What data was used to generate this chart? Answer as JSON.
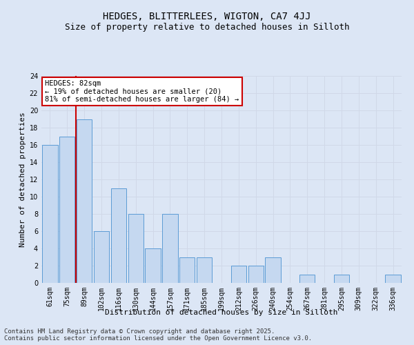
{
  "title": "HEDGES, BLITTERLEES, WIGTON, CA7 4JJ",
  "subtitle": "Size of property relative to detached houses in Silloth",
  "xlabel": "Distribution of detached houses by size in Silloth",
  "ylabel": "Number of detached properties",
  "categories": [
    "61sqm",
    "75sqm",
    "89sqm",
    "102sqm",
    "116sqm",
    "130sqm",
    "144sqm",
    "157sqm",
    "171sqm",
    "185sqm",
    "199sqm",
    "212sqm",
    "226sqm",
    "240sqm",
    "254sqm",
    "267sqm",
    "281sqm",
    "295sqm",
    "309sqm",
    "322sqm",
    "336sqm"
  ],
  "values": [
    16,
    17,
    19,
    6,
    11,
    8,
    4,
    8,
    3,
    3,
    0,
    2,
    2,
    3,
    0,
    1,
    0,
    1,
    0,
    0,
    1
  ],
  "bar_color": "#c5d8f0",
  "bar_edge_color": "#5b9bd5",
  "redline_index": 1,
  "annotation_title": "HEDGES: 82sqm",
  "annotation_line1": "← 19% of detached houses are smaller (20)",
  "annotation_line2": "81% of semi-detached houses are larger (84) →",
  "annotation_box_color": "#ffffff",
  "annotation_box_edge_color": "#cc0000",
  "redline_color": "#cc0000",
  "ylim": [
    0,
    24
  ],
  "yticks": [
    0,
    2,
    4,
    6,
    8,
    10,
    12,
    14,
    16,
    18,
    20,
    22,
    24
  ],
  "grid_color": "#d0d8e8",
  "background_color": "#dce6f5",
  "footer_text": "Contains HM Land Registry data © Crown copyright and database right 2025.\nContains public sector information licensed under the Open Government Licence v3.0.",
  "title_fontsize": 10,
  "subtitle_fontsize": 9,
  "xlabel_fontsize": 8,
  "ylabel_fontsize": 8,
  "tick_fontsize": 7,
  "annotation_fontsize": 7.5,
  "footer_fontsize": 6.5
}
